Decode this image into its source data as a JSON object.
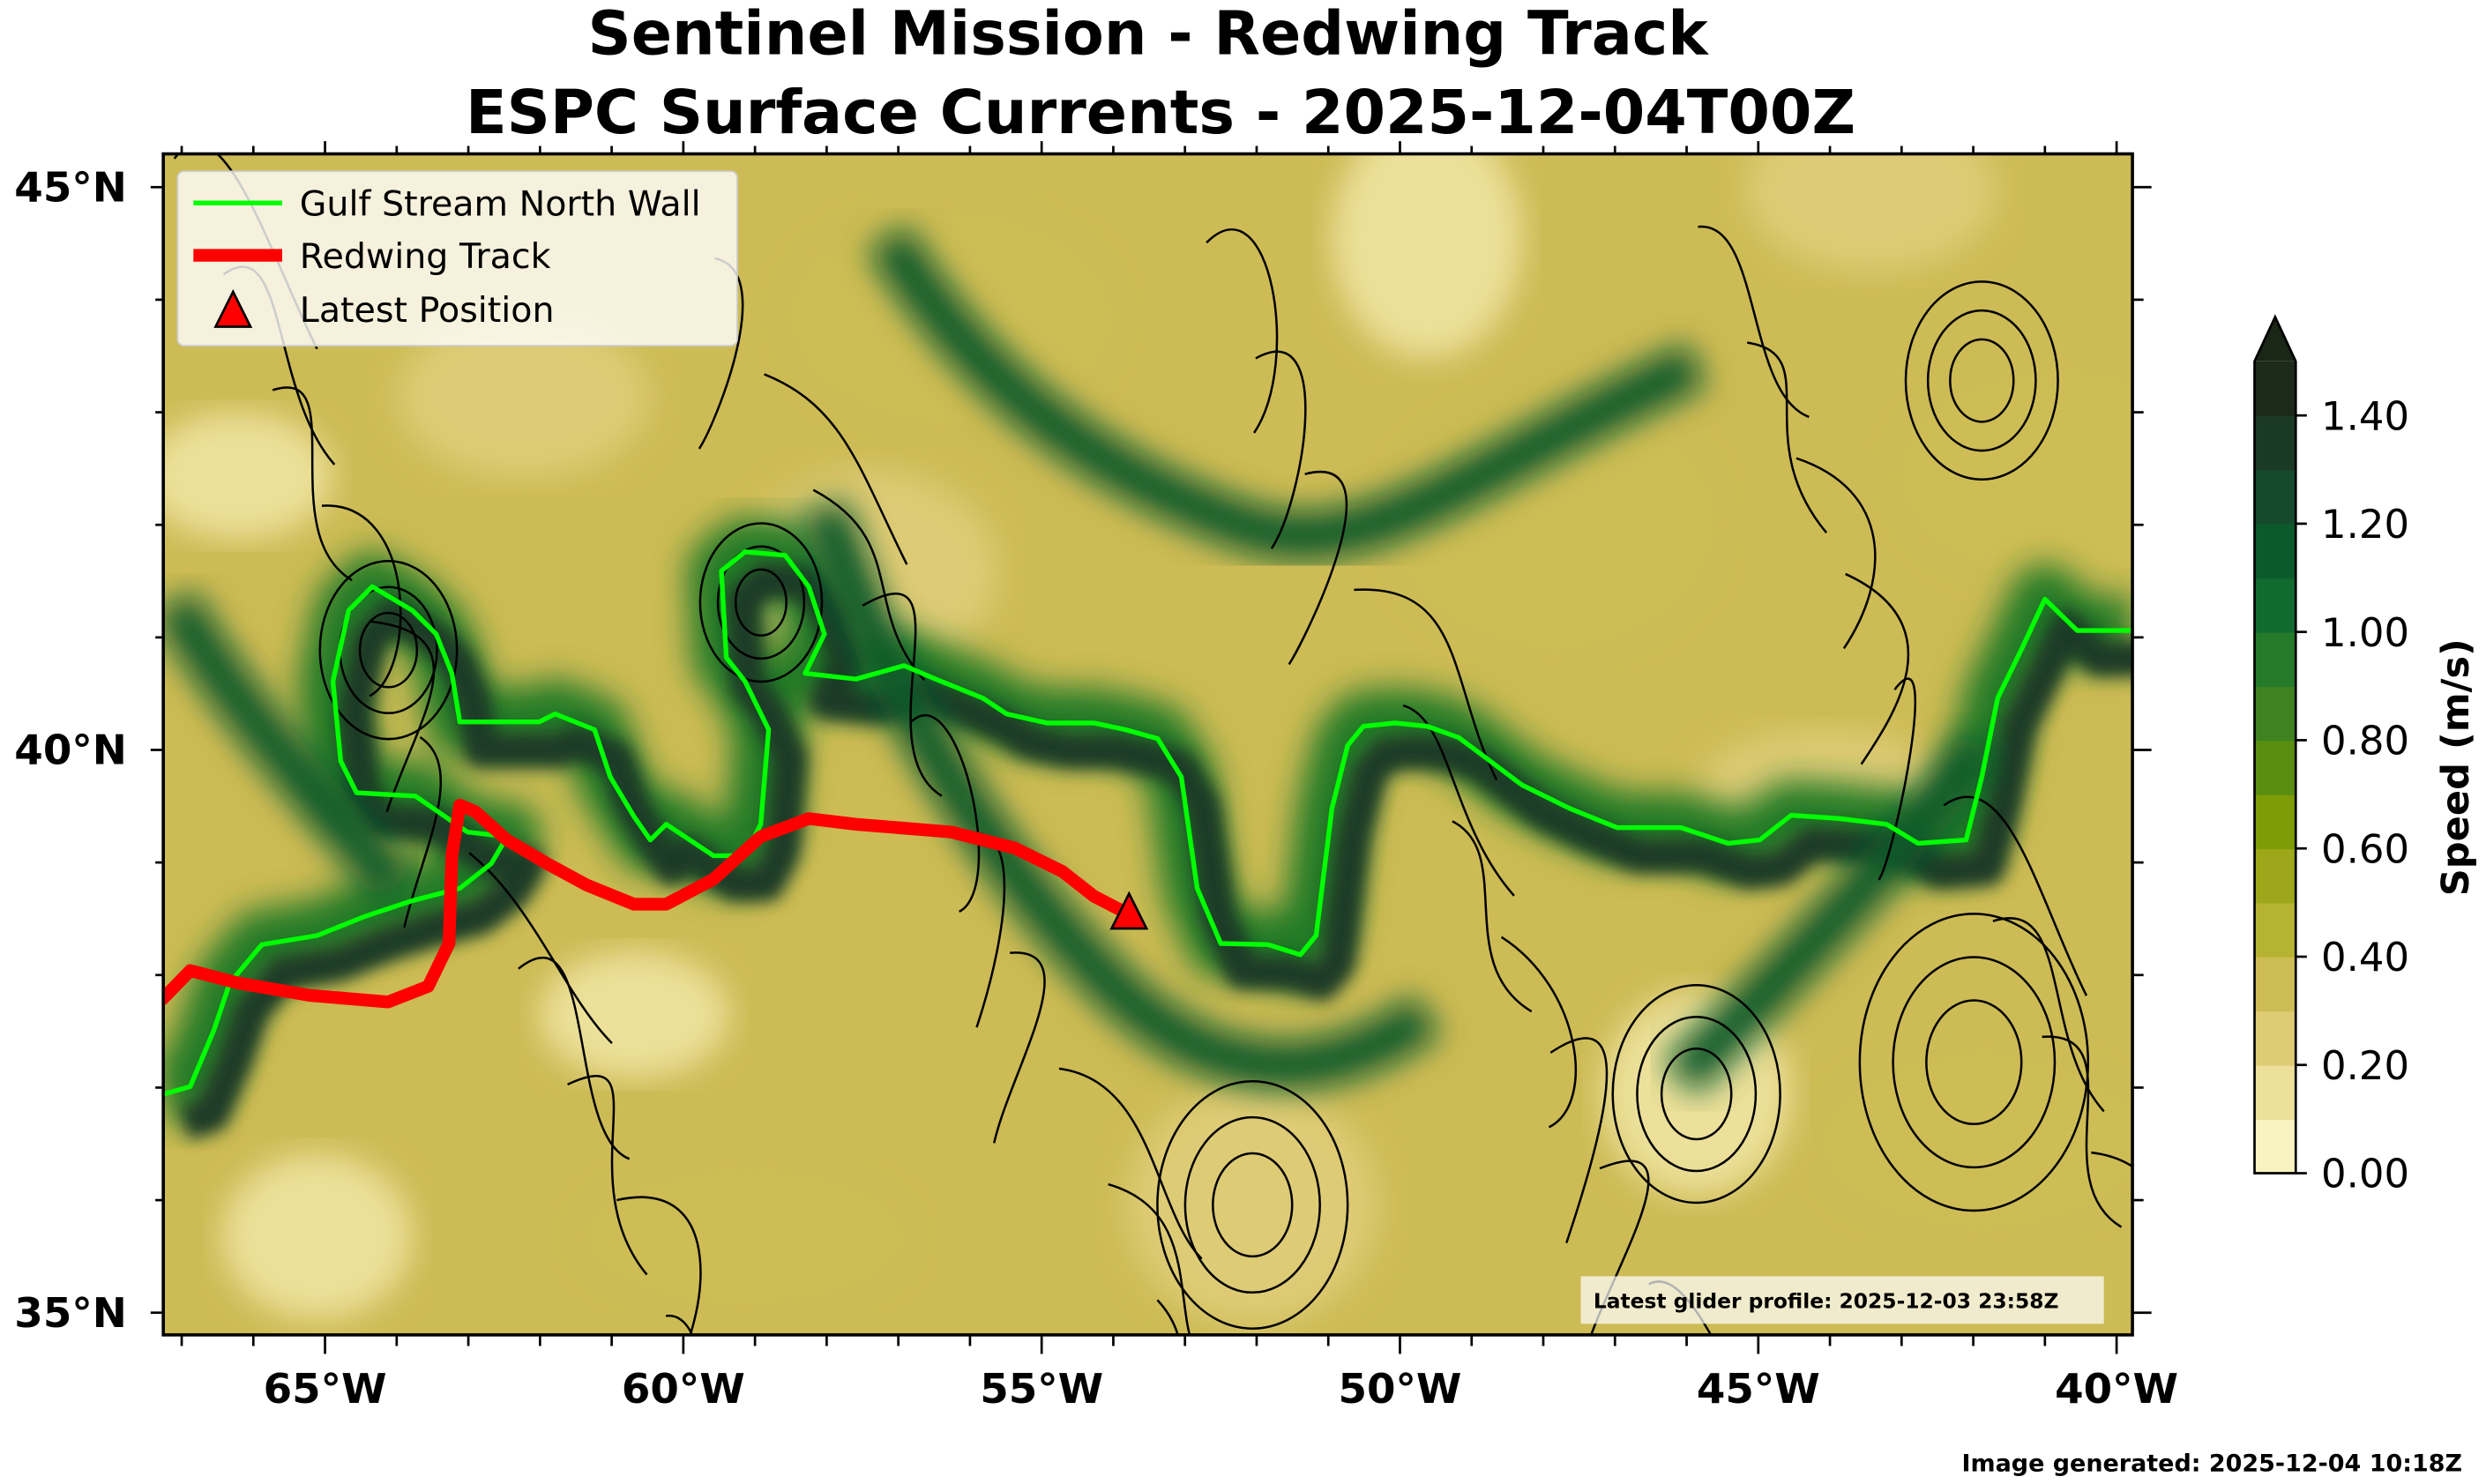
{
  "chart_data": {
    "type": "line",
    "title": "Sentinel Mission - Redwing Track",
    "subtitle": "ESPC Surface Currents - 2025-12-04T00Z",
    "xlabel": "",
    "ylabel": "",
    "xlim": [
      -67.26,
      -39.78
    ],
    "ylim": [
      34.8,
      45.3
    ],
    "x_ticks": [
      -65,
      -60,
      -55,
      -50,
      -45,
      -40
    ],
    "x_tick_labels": [
      "65°W",
      "60°W",
      "55°W",
      "50°W",
      "45°W",
      "40°W"
    ],
    "y_ticks": [
      35,
      40,
      45
    ],
    "y_tick_labels": [
      "35°N",
      "40°N",
      "45°N"
    ],
    "legend_position": "top-left",
    "series": [
      {
        "name": "Gulf Stream North Wall",
        "color": "#00ff00",
        "lon": [
          -67.26,
          -66.88,
          -66.55,
          -66.33,
          -65.88,
          -65.11,
          -64.45,
          -63.78,
          -63.12,
          -62.68,
          -62.46,
          -63.01,
          -63.74,
          -64.56,
          -64.78,
          -64.89,
          -64.67,
          -64.34,
          -63.78,
          -63.45,
          -63.23,
          -63.12,
          -62.01,
          -61.79,
          -61.24,
          -61.02,
          -60.69,
          -60.46,
          -60.24,
          -59.91,
          -59.58,
          -59.14,
          -58.92,
          -58.81,
          -59.14,
          -59.4,
          -59.47,
          -59.14,
          -58.58,
          -58.25,
          -58.03,
          -58.3,
          -57.59,
          -56.92,
          -56.48,
          -55.82,
          -55.49,
          -54.93,
          -54.27,
          -53.83,
          -53.38,
          -53.05,
          -52.83,
          -52.5,
          -51.84,
          -51.39,
          -51.17,
          -50.95,
          -50.73,
          -50.51,
          -50.07,
          -49.62,
          -49.18,
          -48.74,
          -48.3,
          -47.63,
          -46.97,
          -46.08,
          -45.42,
          -44.98,
          -44.54,
          -43.87,
          -43.21,
          -42.77,
          -42.1,
          -41.88,
          -41.66,
          -41.33,
          -41.0,
          -40.55,
          -39.78
        ],
        "lat": [
          36.94,
          37.01,
          37.51,
          37.93,
          38.27,
          38.35,
          38.52,
          38.66,
          38.77,
          38.99,
          39.23,
          39.27,
          39.59,
          39.62,
          39.9,
          40.61,
          41.24,
          41.45,
          41.24,
          41.03,
          40.68,
          40.25,
          40.25,
          40.32,
          40.18,
          39.76,
          39.41,
          39.2,
          39.34,
          39.2,
          39.06,
          39.06,
          39.34,
          40.18,
          40.61,
          40.82,
          41.59,
          41.76,
          41.73,
          41.45,
          41.03,
          40.68,
          40.63,
          40.75,
          40.63,
          40.46,
          40.32,
          40.24,
          40.24,
          40.18,
          40.1,
          39.76,
          38.77,
          38.28,
          38.27,
          38.18,
          38.35,
          39.48,
          40.04,
          40.21,
          40.24,
          40.21,
          40.11,
          39.9,
          39.69,
          39.48,
          39.31,
          39.31,
          39.17,
          39.2,
          39.42,
          39.39,
          39.34,
          39.17,
          39.2,
          39.76,
          40.46,
          40.89,
          41.34,
          41.06,
          41.06
        ]
      },
      {
        "name": "Redwing Track",
        "color": "#ff0000",
        "lon": [
          -67.26,
          -66.88,
          -66.22,
          -65.22,
          -64.12,
          -63.56,
          -63.27,
          -63.23,
          -63.12,
          -62.9,
          -62.46,
          -61.9,
          -61.35,
          -60.69,
          -60.24,
          -59.58,
          -58.92,
          -58.25,
          -57.59,
          -56.26,
          -55.38,
          -54.71,
          -54.27,
          -53.78
        ],
        "lat": [
          37.79,
          38.04,
          37.93,
          37.82,
          37.76,
          37.9,
          38.28,
          39.06,
          39.51,
          39.45,
          39.2,
          38.99,
          38.8,
          38.63,
          38.63,
          38.85,
          39.23,
          39.39,
          39.34,
          39.27,
          39.13,
          38.92,
          38.7,
          38.54
        ]
      },
      {
        "name": "Latest Position",
        "color": "#ff0000",
        "marker": "triangle",
        "lon": [
          -53.78
        ],
        "lat": [
          38.54
        ]
      }
    ],
    "colorbar": {
      "label": "Speed (m/s)",
      "ticks": [
        0.0,
        0.2,
        0.4,
        0.6,
        0.8,
        1.0,
        1.2,
        1.4
      ],
      "tick_labels": [
        "0.00",
        "0.20",
        "0.40",
        "0.60",
        "0.80",
        "1.00",
        "1.20",
        "1.40"
      ],
      "range": [
        0.0,
        1.5
      ],
      "extend": "max",
      "colors": [
        "#f8f3c0",
        "#ece09a",
        "#decb74",
        "#cebd55",
        "#b7b332",
        "#9ca81a",
        "#7e9c06",
        "#5a8e12",
        "#3e8320",
        "#247a28",
        "#116a2f",
        "#0c5a2c",
        "#154a2c",
        "#1b3a25",
        "#1c2a1a"
      ],
      "extend_color": "#1a2616"
    },
    "annotations": {
      "glider_profile": "Latest glider profile: 2025-12-03 23:58Z",
      "generated": "Image generated: 2025-12-04 10:18Z"
    }
  }
}
